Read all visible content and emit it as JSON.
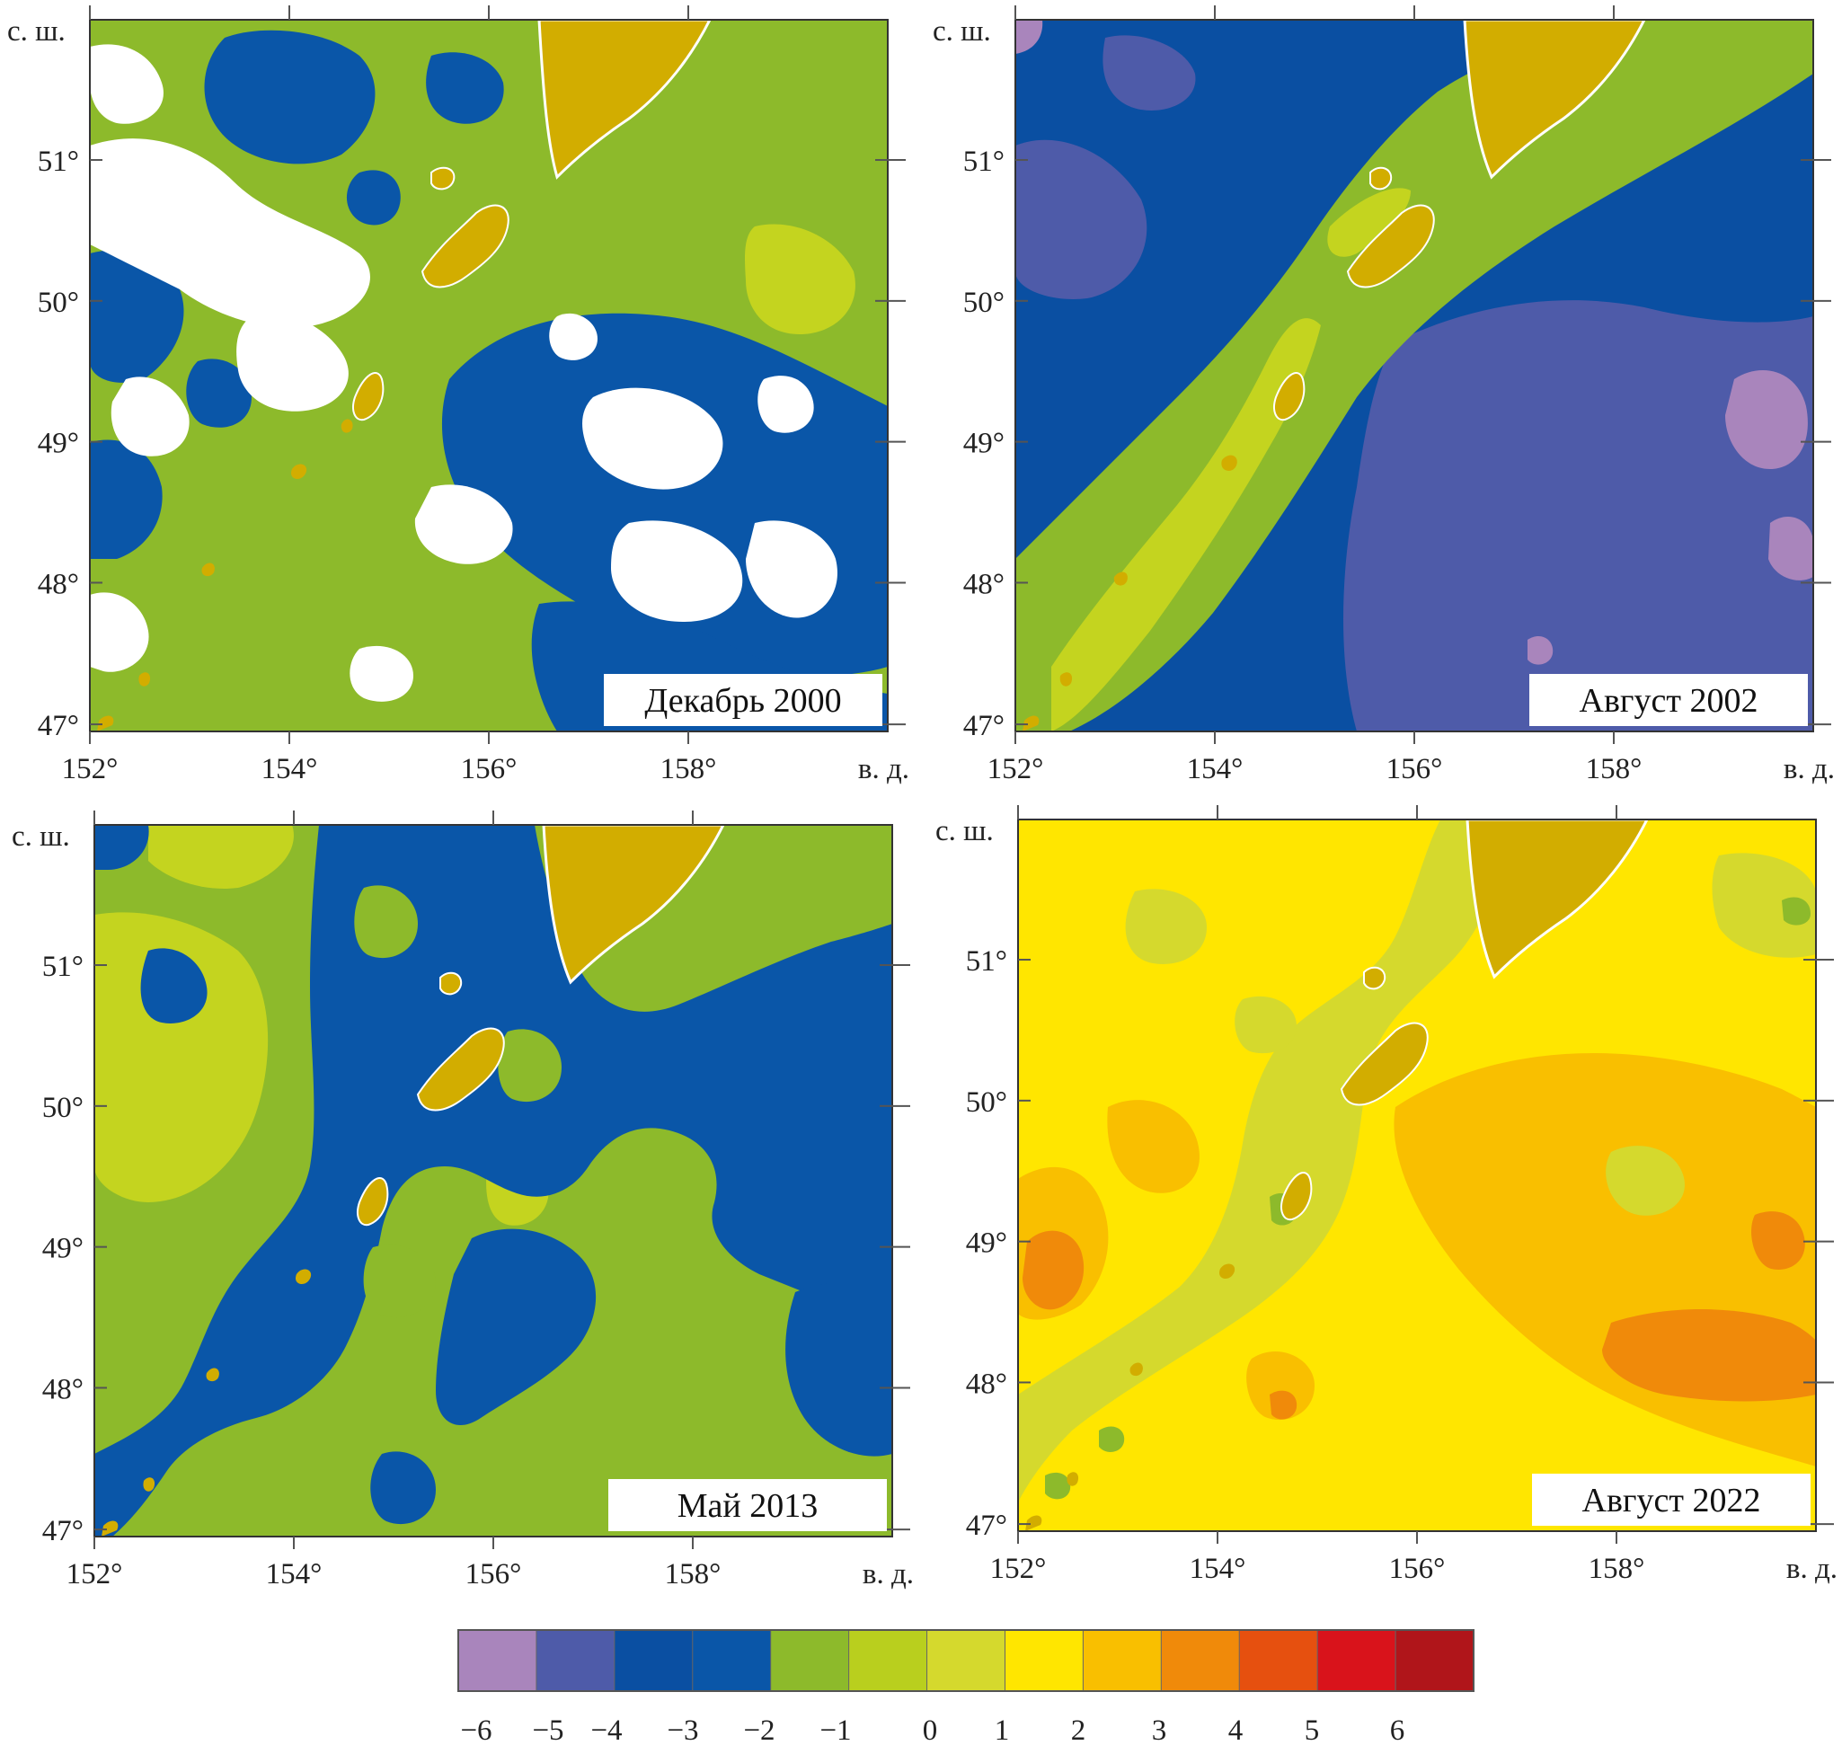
{
  "panels": [
    {
      "title": "Декабрь 2000",
      "lat_label": "с. ш.",
      "lon_label": "в. д.",
      "y_ticks": [
        "51°",
        "50°",
        "49°",
        "48°",
        "47°"
      ],
      "x_ticks": [
        "152°",
        "154°",
        "156°",
        "158°"
      ],
      "background_class": "green"
    },
    {
      "title": "Август 2002",
      "lat_label": "с. ш.",
      "lon_label": "в. д.",
      "y_ticks": [
        "51°",
        "50°",
        "49°",
        "48°",
        "47°"
      ],
      "x_ticks": [
        "152°",
        "154°",
        "156°",
        "158°"
      ],
      "background_class": "blue"
    },
    {
      "title": "Май 2013",
      "lat_label": "с. ш.",
      "lon_label": "в. д.",
      "y_ticks": [
        "51°",
        "50°",
        "49°",
        "48°",
        "47°"
      ],
      "x_ticks": [
        "152°",
        "154°",
        "156°",
        "158°"
      ],
      "background_class": "mixed"
    },
    {
      "title": "Август 2022",
      "lat_label": "с. ш.",
      "lon_label": "в. д.",
      "y_ticks": [
        "51°",
        "50°",
        "49°",
        "48°",
        "47°"
      ],
      "x_ticks": [
        "152°",
        "154°",
        "156°",
        "158°"
      ],
      "background_class": "yellow"
    }
  ],
  "colorbar": {
    "labels": [
      "−6",
      "−5",
      "−4",
      "−3",
      "−2",
      "−1",
      "0",
      "1",
      "2",
      "3",
      "4",
      "5",
      "6"
    ],
    "colors": [
      "#a985bc",
      "#4e5ba9",
      "#0a4fa2",
      "#0a56a8",
      "#8dba2b",
      "#b9cf1e",
      "#d5d92d",
      "#ffe600",
      "#f9bf00",
      "#f08a0a",
      "#e6500f",
      "#d9131b",
      "#b0151a"
    ]
  },
  "colors": {
    "land": "#d2ad00",
    "blue": "#0a56a8",
    "green": "#8dba2b",
    "yellowgreen": "#c4d41f",
    "violet": "#4e5ba9",
    "lilac": "#a985bc",
    "yellow": "#ffe600",
    "orange": "#f9bf00",
    "deeporange": "#f08a0a"
  }
}
